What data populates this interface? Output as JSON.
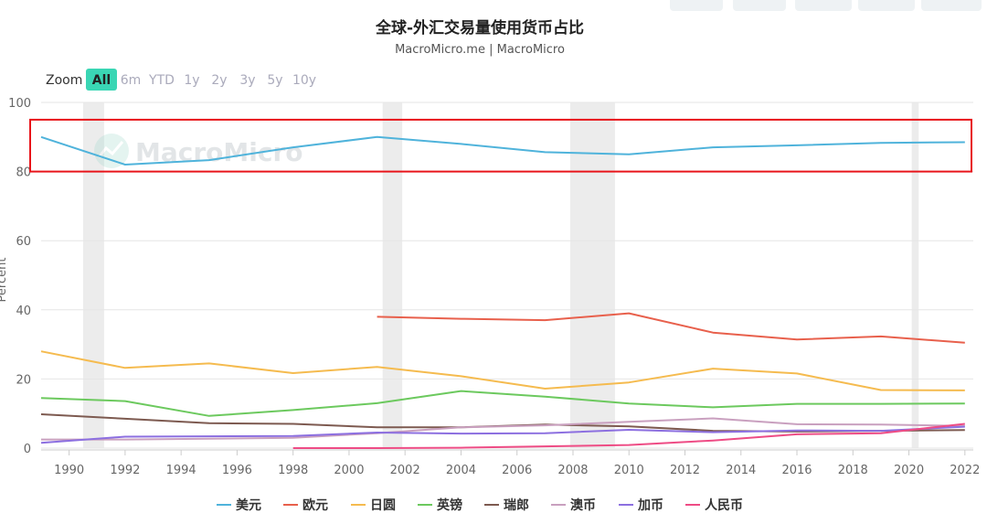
{
  "chart_data": {
    "type": "line",
    "title": "全球-外汇交易量使用货币占比",
    "subtitle": "MacroMicro.me | MacroMicro",
    "watermark": "MacroMicro",
    "ylabel": "Percent",
    "ylim": [
      0,
      100
    ],
    "yticks": [
      0,
      20,
      40,
      60,
      80,
      100
    ],
    "xlim": [
      1989,
      2022.3
    ],
    "xticks": [
      1990,
      1992,
      1994,
      1996,
      1998,
      2000,
      2002,
      2004,
      2006,
      2008,
      2010,
      2012,
      2014,
      2016,
      2018,
      2020,
      2022
    ],
    "shaded_periods": [
      [
        1990.5,
        1991.25
      ],
      [
        2001.2,
        2001.9
      ],
      [
        2007.9,
        2009.5
      ],
      [
        2020.1,
        2020.35
      ]
    ],
    "highlight_band": [
      80,
      95
    ],
    "series": [
      {
        "name": "美元",
        "color": "#4fb3db",
        "x": [
          1989,
          1992,
          1995,
          1998,
          2001,
          2004,
          2007,
          2010,
          2013,
          2016,
          2019,
          2022
        ],
        "values": [
          90.0,
          82.0,
          83.3,
          87.0,
          90.0,
          88.0,
          85.6,
          85.0,
          87.0,
          87.6,
          88.3,
          88.5
        ]
      },
      {
        "name": "欧元",
        "color": "#e8604c",
        "x": [
          2001,
          2004,
          2007,
          2010,
          2013,
          2016,
          2019,
          2022
        ],
        "values": [
          38.0,
          37.4,
          37.0,
          39.0,
          33.4,
          31.4,
          32.3,
          30.5
        ]
      },
      {
        "name": "日圆",
        "color": "#f5bb4f",
        "x": [
          1989,
          1992,
          1995,
          1998,
          2001,
          2004,
          2007,
          2010,
          2013,
          2016,
          2019,
          2022
        ],
        "values": [
          28.0,
          23.2,
          24.5,
          21.7,
          23.5,
          20.8,
          17.2,
          19.0,
          23.0,
          21.6,
          16.8,
          16.7
        ]
      },
      {
        "name": "英镑",
        "color": "#6cc95e",
        "x": [
          1989,
          1992,
          1995,
          1998,
          2001,
          2004,
          2007,
          2010,
          2013,
          2016,
          2019,
          2022
        ],
        "values": [
          14.5,
          13.6,
          9.3,
          11.0,
          13.0,
          16.5,
          14.9,
          12.9,
          11.8,
          12.8,
          12.8,
          12.9
        ]
      },
      {
        "name": "瑞郎",
        "color": "#7d5a50",
        "x": [
          1989,
          1992,
          1995,
          1998,
          2001,
          2004,
          2007,
          2010,
          2013,
          2016,
          2019,
          2022
        ],
        "values": [
          9.8,
          8.5,
          7.2,
          7.0,
          6.0,
          6.0,
          6.8,
          6.3,
          5.0,
          4.8,
          5.0,
          5.2
        ]
      },
      {
        "name": "澳币",
        "color": "#c9a0bf",
        "x": [
          1989,
          1992,
          1995,
          1998,
          2001,
          2004,
          2007,
          2010,
          2013,
          2016,
          2019,
          2022
        ],
        "values": [
          2.5,
          2.5,
          2.7,
          3.0,
          4.3,
          6.0,
          6.6,
          7.6,
          8.6,
          6.9,
          6.8,
          6.4
        ]
      },
      {
        "name": "加币",
        "color": "#8c6fe0",
        "x": [
          1989,
          1992,
          1995,
          1998,
          2001,
          2004,
          2007,
          2010,
          2013,
          2016,
          2019,
          2022
        ],
        "values": [
          1.5,
          3.3,
          3.4,
          3.5,
          4.5,
          4.2,
          4.3,
          5.3,
          4.6,
          5.1,
          5.0,
          6.2
        ]
      },
      {
        "name": "人民币",
        "color": "#ee4c85",
        "x": [
          1998,
          2001,
          2004,
          2007,
          2010,
          2013,
          2016,
          2019,
          2022
        ],
        "values": [
          0.0,
          0.0,
          0.1,
          0.5,
          0.9,
          2.2,
          4.0,
          4.3,
          7.0
        ]
      }
    ]
  },
  "zoom": {
    "label": "Zoom",
    "active": "All",
    "options": [
      "All",
      "6m",
      "YTD",
      "1y",
      "2y",
      "3y",
      "5y",
      "10y"
    ]
  },
  "colors": {
    "zoom_active_bg": "#3ad6b4",
    "highlight": "#e8141a",
    "shade": "#ececec",
    "grid": "#e6e6e6"
  }
}
